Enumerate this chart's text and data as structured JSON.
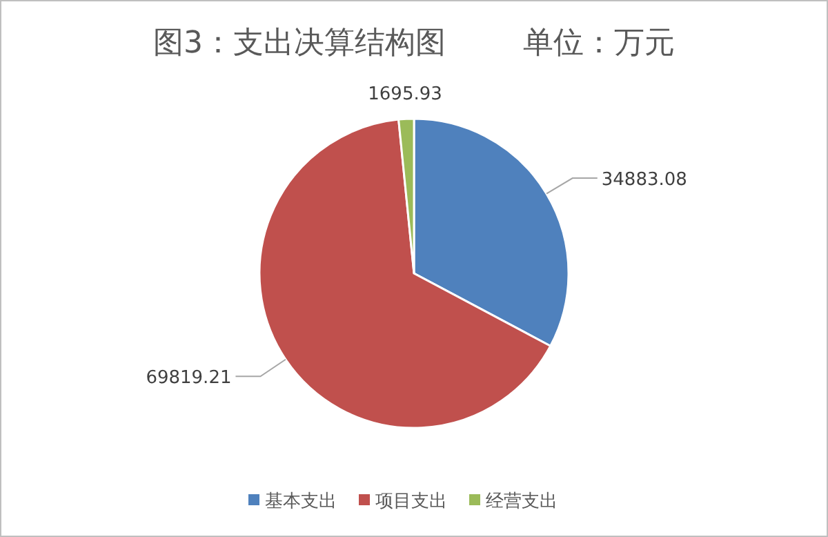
{
  "chart_data": {
    "type": "pie",
    "title": "图3：支出决算结构图        单位：万元",
    "categories": [
      "基本支出",
      "项目支出",
      "经营支出"
    ],
    "values": [
      34883.08,
      69819.21,
      1695.93
    ],
    "colors": [
      "#4f81bd",
      "#c0504d",
      "#9bbb59"
    ],
    "data_labels": true,
    "legend": "bottom"
  }
}
